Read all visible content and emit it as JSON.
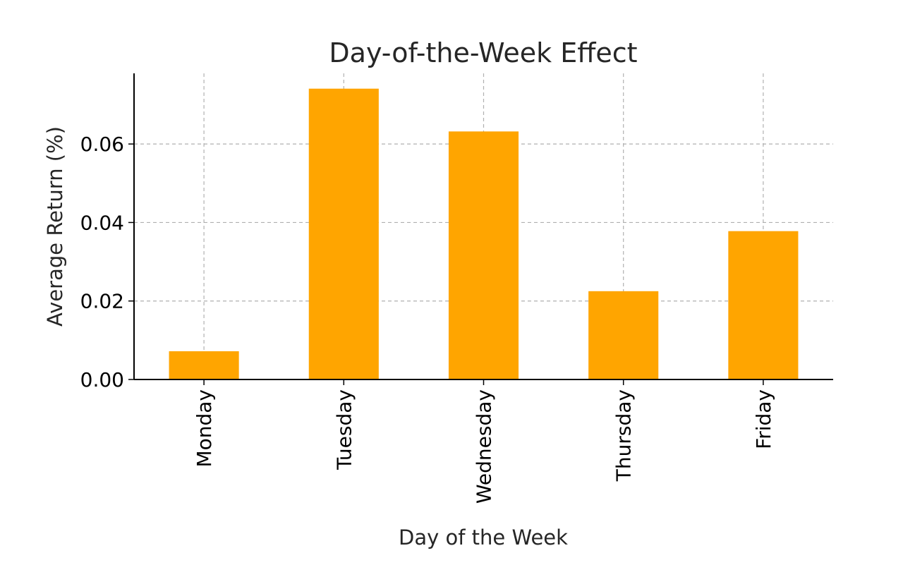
{
  "chart_data": {
    "type": "bar",
    "title": "Day-of-the-Week Effect",
    "xlabel": "Day of the Week",
    "ylabel": "Average Return (%)",
    "categories": [
      "Monday",
      "Tuesday",
      "Wednesday",
      "Thursday",
      "Friday"
    ],
    "values": [
      0.0072,
      0.0741,
      0.0632,
      0.0225,
      0.0378
    ],
    "ylim": [
      0,
      0.078
    ],
    "yticks": [
      0.0,
      0.02,
      0.04,
      0.06
    ],
    "ytick_labels": [
      "0.00",
      "0.02",
      "0.04",
      "0.06"
    ],
    "grid": true,
    "bar_color": "#FFA500",
    "grid_color": "#b0b0b0",
    "axis_color": "#000000"
  }
}
